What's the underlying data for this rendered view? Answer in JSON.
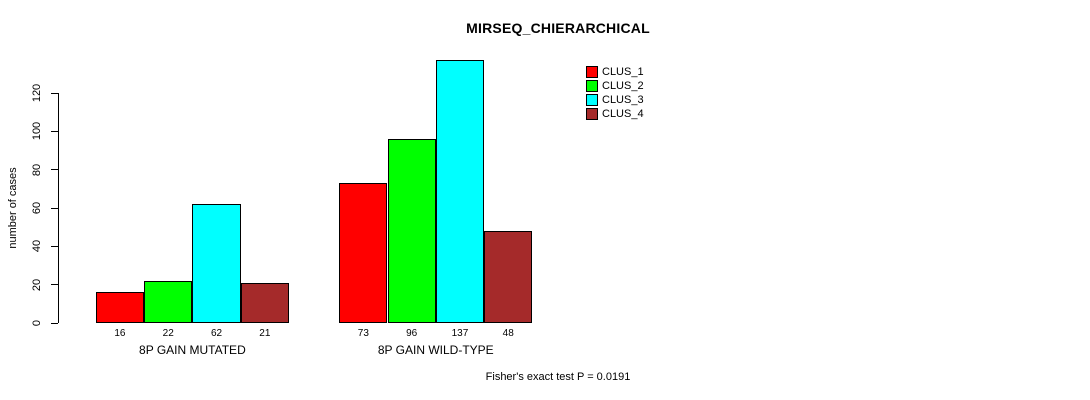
{
  "chart_data": {
    "type": "bar",
    "title": "MIRSEQ_CHIERARCHICAL",
    "ylabel": "number of cases",
    "xlabel": "",
    "categories": [
      "8P GAIN MUTATED",
      "8P GAIN WILD-TYPE"
    ],
    "series": [
      {
        "name": "CLUS_1",
        "color": "#ff0000",
        "values": [
          16,
          73
        ]
      },
      {
        "name": "CLUS_2",
        "color": "#00ff00",
        "values": [
          22,
          96
        ]
      },
      {
        "name": "CLUS_3",
        "color": "#00ffff",
        "values": [
          62,
          137
        ]
      },
      {
        "name": "CLUS_4",
        "color": "#a52a2a",
        "values": [
          21,
          48
        ]
      }
    ],
    "y_ticks": [
      0,
      20,
      40,
      60,
      80,
      100,
      120
    ],
    "ylim": [
      0,
      137
    ],
    "grid": false,
    "bar_value_labels_shown": true,
    "legend_position": "top-right-inside",
    "legend_entries": [
      "CLUS_1",
      "CLUS_2",
      "CLUS_3",
      "CLUS_4"
    ],
    "annotation": "Fisher's exact test P = 0.0191"
  }
}
